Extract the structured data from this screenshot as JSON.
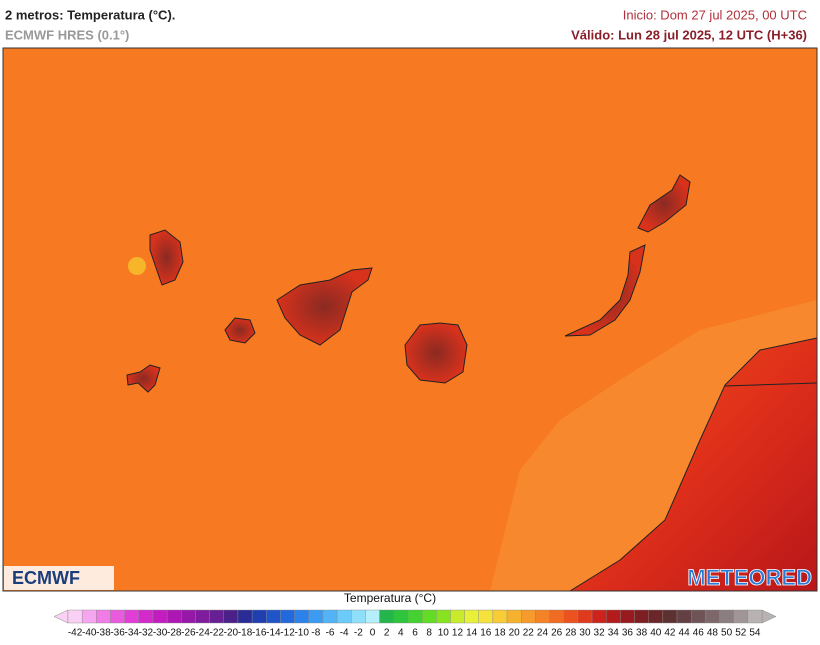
{
  "header": {
    "title": "2 metros: Temperatura (°C).",
    "model": "ECMWF HRES (0.1°)",
    "init": "Inicio: Dom 27 jul 2025, 00 UTC",
    "valid": "Válido: Lun 28 jul 2025, 12 UTC (H+36)"
  },
  "logos": {
    "left": "ECMWF",
    "right": "METEORED"
  },
  "legend": {
    "title": "Temperatura (°C)",
    "ticks": [
      -42,
      -40,
      -38,
      -36,
      -34,
      -32,
      -30,
      -28,
      -26,
      -24,
      -22,
      -20,
      -18,
      -16,
      -14,
      -12,
      -10,
      -8,
      -6,
      -4,
      -2,
      0,
      2,
      4,
      6,
      8,
      10,
      12,
      14,
      16,
      18,
      20,
      22,
      24,
      26,
      28,
      30,
      32,
      34,
      36,
      38,
      40,
      42,
      44,
      46,
      48,
      50,
      52,
      54
    ],
    "colors": [
      "#fbd0f5",
      "#f6a6ee",
      "#f07ce6",
      "#e95ade",
      "#e03ed6",
      "#d42acb",
      "#c31dbf",
      "#ad17b4",
      "#9618a8",
      "#7f1c9e",
      "#672094",
      "#4b2088",
      "#2a2c96",
      "#1f3fb0",
      "#1f55c8",
      "#2169dc",
      "#2a82ea",
      "#3b9bf2",
      "#52b4f6",
      "#6ccbf8",
      "#8ee0fa",
      "#b6effc",
      "#25b54a",
      "#2fc43d",
      "#45d131",
      "#63dc26",
      "#86e41f",
      "#c8ec2c",
      "#e8f03a",
      "#f5e23c",
      "#f7cc36",
      "#f6b22f",
      "#f59a2b",
      "#f48226",
      "#f06c22",
      "#ea521e",
      "#e03a1c",
      "#cc241c",
      "#b31b1c",
      "#981a1e",
      "#7d1e22",
      "#6a2628",
      "#5e3131",
      "#634043",
      "#6e5457",
      "#7c686b",
      "#8b7e80",
      "#a09698",
      "#b8b2b3"
    ]
  }
}
